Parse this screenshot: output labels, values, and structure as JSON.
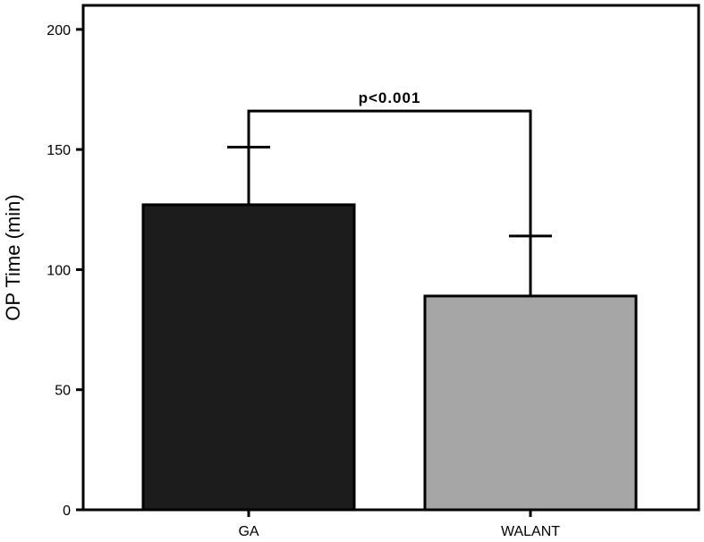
{
  "chart_data": {
    "type": "bar",
    "categories": [
      "GA",
      "WALANT"
    ],
    "values": [
      127,
      89
    ],
    "error_upper": [
      151,
      114
    ],
    "bar_colors": [
      "#1c1c1c",
      "#a6a6a6"
    ],
    "ylabel": "OP Time (min)",
    "xlabel": "",
    "ylim": [
      0,
      210
    ],
    "yticks": [
      0,
      50,
      100,
      150,
      200
    ],
    "grid": false,
    "annotation": {
      "text": "p<0.001",
      "bracket_y": 166
    }
  }
}
